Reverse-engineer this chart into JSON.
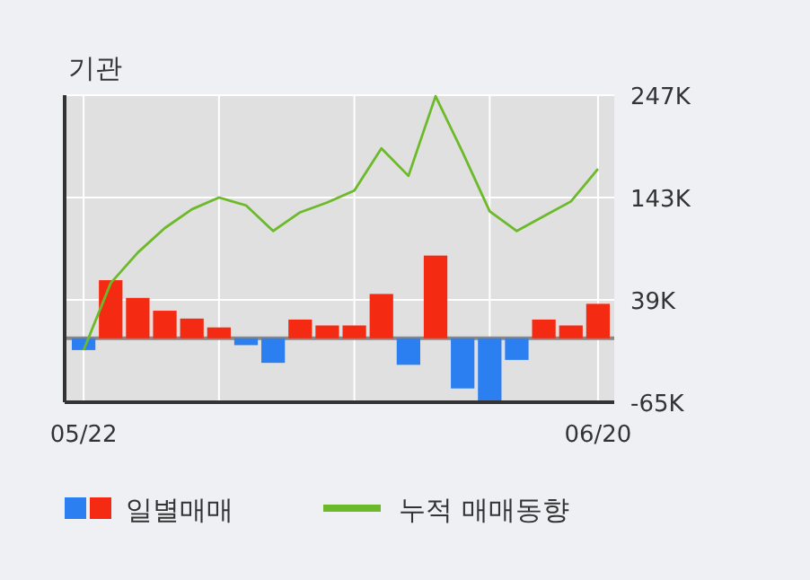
{
  "chart_data": {
    "type": "bar",
    "title": "기관",
    "categories": [
      "05/22",
      null,
      null,
      null,
      null,
      null,
      null,
      null,
      null,
      null,
      null,
      null,
      null,
      null,
      null,
      null,
      null,
      null,
      null,
      "06/20"
    ],
    "series": [
      {
        "name": "일별매매",
        "colors": [
          "#2c7ff0",
          "#f42a12",
          "#f42a12",
          "#f42a12",
          "#f42a12",
          "#f42a12",
          "#2c7ff0",
          "#2c7ff0",
          "#f42a12",
          "#f42a12",
          "#f42a12",
          "#f42a12",
          "#2c7ff0",
          "#f42a12",
          "#2c7ff0",
          "#2c7ff0",
          "#2c7ff0",
          "#f42a12",
          "#f42a12",
          "#f42a12"
        ],
        "values": [
          -12000,
          59000,
          41000,
          28000,
          20000,
          11000,
          -7000,
          -25000,
          19000,
          13000,
          13000,
          45000,
          -27000,
          84000,
          -51000,
          -64000,
          -22000,
          19000,
          13000,
          35000
        ]
      },
      {
        "name": "누적 매매동향",
        "type": "line",
        "color": "#6cba2a",
        "values": [
          -12000,
          56000,
          87000,
          112000,
          131000,
          143000,
          135000,
          109000,
          128000,
          138000,
          150000,
          193000,
          165000,
          246000,
          189000,
          129000,
          109000,
          124000,
          139000,
          172000
        ]
      }
    ],
    "ylim": [
      -65000,
      247000
    ],
    "yticks": [
      {
        "value": -65000,
        "label": "-65K"
      },
      {
        "value": 39000,
        "label": "39K"
      },
      {
        "value": 143000,
        "label": "143K"
      },
      {
        "value": 247000,
        "label": "247K"
      }
    ],
    "grid": true,
    "legend": "bottom"
  }
}
